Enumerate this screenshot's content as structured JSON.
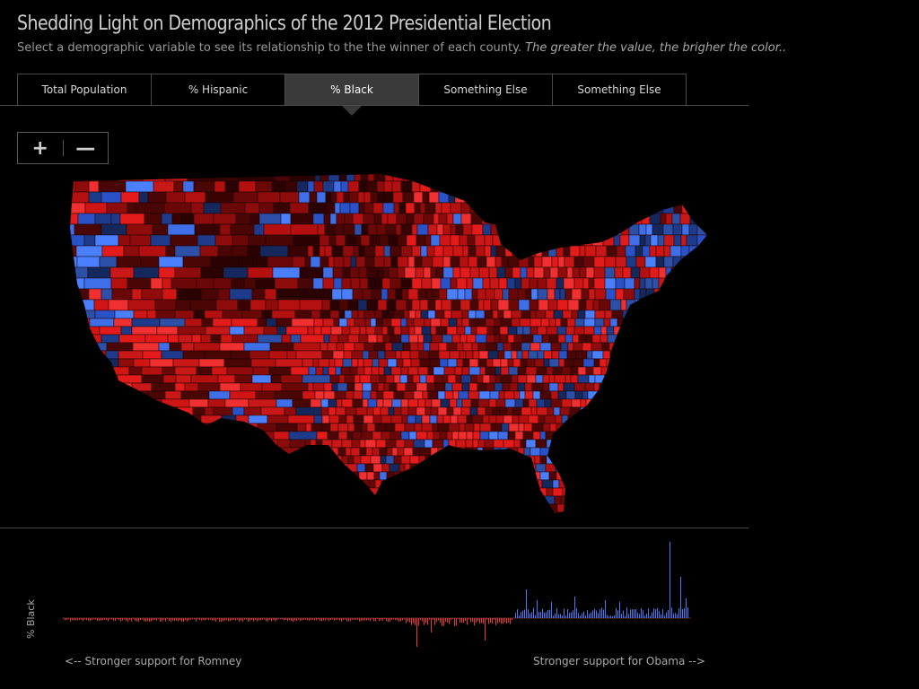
{
  "header": {
    "title": "Shedding Light on Demographics of the 2012 Presidential Election",
    "subtitle": "Select a demographic variable to see its relationship to the the winner of each county.",
    "hint": "The greater the value, the brigher the color.."
  },
  "tabs": [
    {
      "label": "Total Population",
      "active": false
    },
    {
      "label": "% Hispanic",
      "active": false
    },
    {
      "label": "% Black",
      "active": true
    },
    {
      "label": "Something Else",
      "active": false
    },
    {
      "label": "Something Else",
      "active": false
    }
  ],
  "zoom": {
    "in_icon": "plus-icon",
    "out_icon": "minus-icon"
  },
  "map": {
    "republican_color": "#e01a1a",
    "democrat_color": "#3f6fe8"
  },
  "chart": {
    "ylabel": "% Black",
    "left_label": "<--  Stronger support for Romney",
    "right_label": "Stronger support for Obama  -->"
  },
  "colors": {
    "romney": "#e8393a",
    "obama": "#4f78f0",
    "background": "#000000"
  }
}
